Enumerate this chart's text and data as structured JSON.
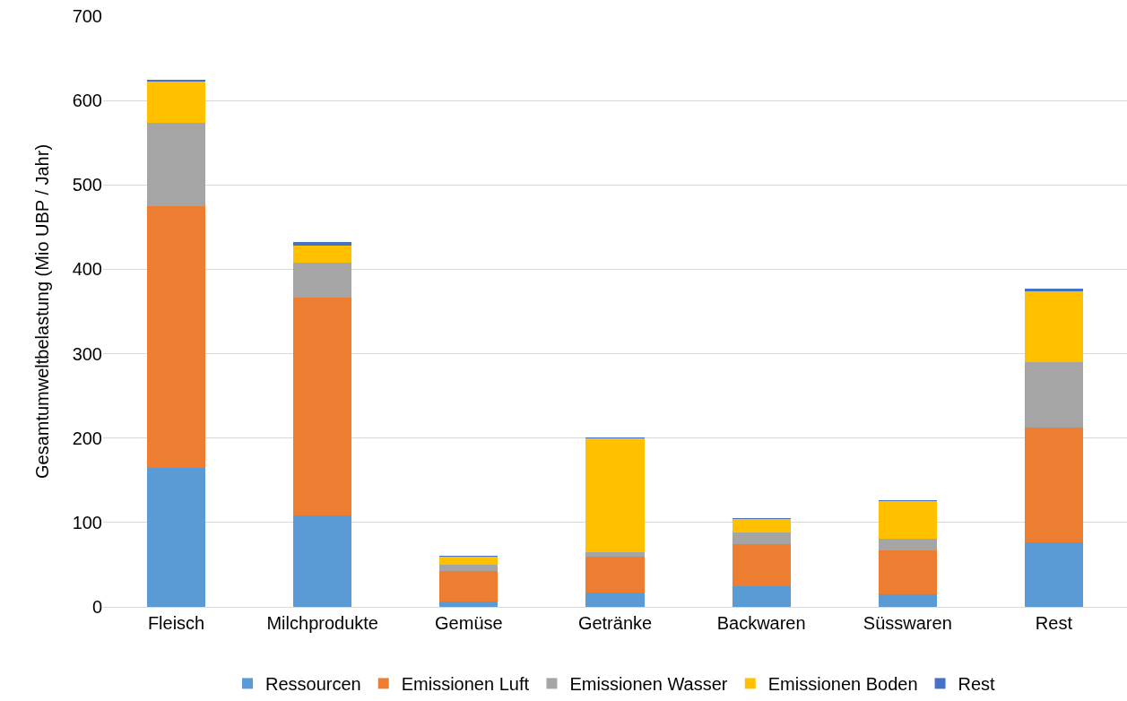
{
  "chart_data": {
    "type": "bar",
    "stacked": true,
    "ylabel": "Gesamtumweltbelastung (Mio UBP / Jahr)",
    "categories": [
      "Fleisch",
      "Milchprodukte",
      "Gemüse",
      "Getränke",
      "Backwaren",
      "Süsswaren",
      "Rest"
    ],
    "series": [
      {
        "name": "Ressourcen",
        "color": "#5b9bd5",
        "values": [
          165,
          108,
          6,
          17,
          24,
          15,
          76
        ]
      },
      {
        "name": "Emissionen Luft",
        "color": "#ed7d31",
        "values": [
          310,
          258,
          37,
          42,
          50,
          52,
          136
        ]
      },
      {
        "name": "Emissionen Wasser",
        "color": "#a5a5a5",
        "values": [
          99,
          42,
          7,
          6,
          14,
          14,
          78
        ]
      },
      {
        "name": "Emissionen Boden",
        "color": "#ffc000",
        "values": [
          48,
          20,
          10,
          135,
          16,
          44,
          84
        ]
      },
      {
        "name": "Rest",
        "color": "#4472c4",
        "values": [
          3,
          4,
          1,
          1,
          1,
          1,
          3
        ]
      }
    ],
    "ylim": [
      0,
      700
    ],
    "yticks": [
      0,
      100,
      200,
      300,
      400,
      500,
      600,
      700
    ],
    "grid": "y",
    "legend": "bottom"
  }
}
